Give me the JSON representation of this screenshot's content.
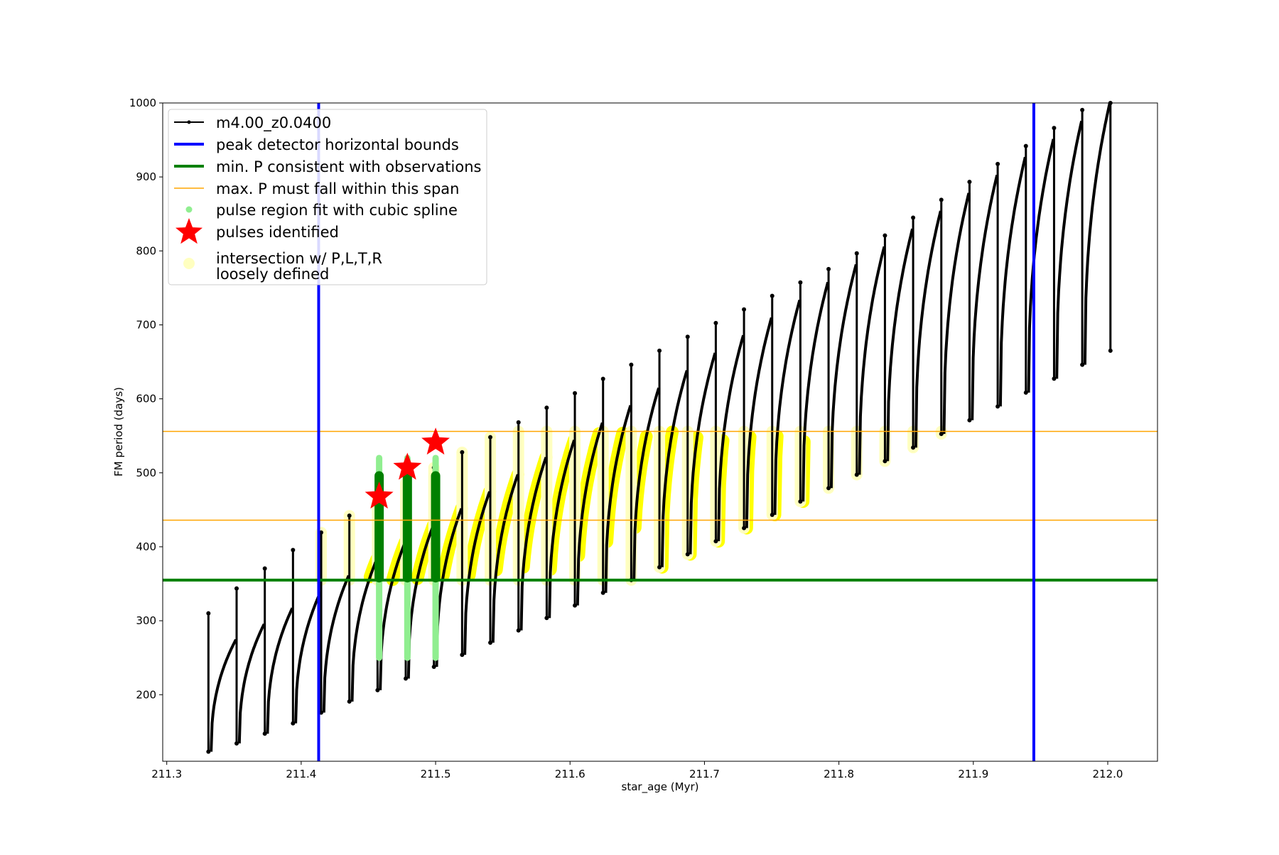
{
  "chart_data": {
    "type": "scatter",
    "title": "",
    "xlabel": "star_age (Myr)",
    "ylabel": "FM period (days)",
    "xlim": [
      211.297,
      212.037
    ],
    "ylim": [
      110,
      1000
    ],
    "x_ticks": [
      "211.3",
      "211.4",
      "211.5",
      "211.6",
      "211.7",
      "211.8",
      "211.9",
      "212.0"
    ],
    "y_ticks": [
      "200",
      "300",
      "400",
      "500",
      "600",
      "700",
      "800",
      "900",
      "1000"
    ],
    "grid": false,
    "legend_position": "top-left",
    "legend": [
      {
        "label": "m4.00_z0.0400",
        "marker": "line-dot",
        "color": "#000000"
      },
      {
        "label": "peak detector horizontal bounds",
        "marker": "thick-line",
        "color": "#0000ff"
      },
      {
        "label": "min. P consistent with observations",
        "marker": "thick-line",
        "color": "#008000"
      },
      {
        "label": "max. P must fall within this span",
        "marker": "thin-line",
        "color": "#ffa500"
      },
      {
        "label": "pulse region fit with cubic spline",
        "marker": "dot",
        "color": "#90ee90"
      },
      {
        "label": "pulses identified",
        "marker": "star",
        "color": "#ff0000"
      },
      {
        "label": [
          "intersection w/ P,L,T,R",
          "loosely defined"
        ],
        "marker": "circle",
        "color": "#ffffc0"
      }
    ],
    "reference_lines": {
      "vertical_blue_x": [
        211.413,
        211.945
      ],
      "horizontal_green_y": 355,
      "horizontal_orange_y": [
        436,
        556
      ]
    },
    "pulse_cycles": {
      "start_age": 211.331,
      "end_age": 212.002,
      "count": 33,
      "min_period_start": 123,
      "min_period_end": 665,
      "max_period_start": 255,
      "max_period_end": 1000
    },
    "pulses_identified": [
      {
        "x": 211.458,
        "y": 468
      },
      {
        "x": 211.479,
        "y": 507
      },
      {
        "x": 211.5,
        "y": 541
      }
    ],
    "colors": {
      "track": "#000000",
      "bounds": "#0000ff",
      "min_p": "#008000",
      "max_p": "#ffa500",
      "spline": "#90ee90",
      "spline_dark": "#008000",
      "stars": "#ff0000",
      "intersection": "#ffff00",
      "intersection_light": "#ffffc0"
    }
  }
}
